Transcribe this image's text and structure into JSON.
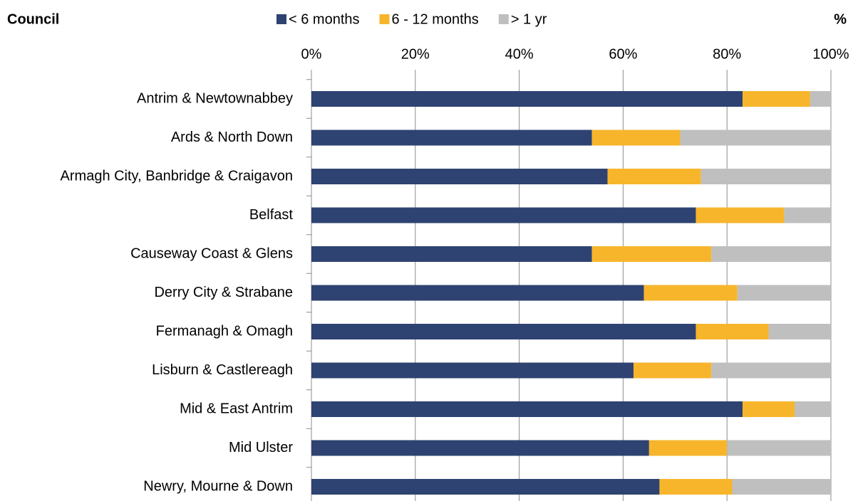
{
  "chart_data": {
    "type": "stacked_barh",
    "y_label": "Council",
    "x_label": "%",
    "categories": [
      "Antrim & Newtownabbey",
      "Ards & North Down",
      "Armagh City, Banbridge & Craigavon",
      "Belfast",
      "Causeway Coast & Glens",
      "Derry City & Strabane",
      "Fermanagh & Omagh",
      "Lisburn & Castlereagh",
      "Mid & East Antrim",
      "Mid Ulster",
      "Newry, Mourne & Down"
    ],
    "series": [
      {
        "name": "< 6 months",
        "color": "#2e4372",
        "values": [
          83,
          54,
          57,
          74,
          54,
          64,
          74,
          62,
          83,
          65,
          67
        ]
      },
      {
        "name": "6 - 12 months",
        "color": "#f7b52c",
        "values": [
          13,
          17,
          18,
          17,
          23,
          18,
          14,
          15,
          10,
          15,
          14
        ]
      },
      {
        "name": "> 1 yr",
        "color": "#bfbfbf",
        "values": [
          4,
          29,
          25,
          9,
          23,
          18,
          12,
          23,
          7,
          20,
          19
        ]
      }
    ],
    "xlim": [
      0,
      100
    ],
    "xticks": [
      {
        "value": 0,
        "label": "0%"
      },
      {
        "value": 20,
        "label": "20%"
      },
      {
        "value": 40,
        "label": "40%"
      },
      {
        "value": 60,
        "label": "60%"
      },
      {
        "value": 80,
        "label": "80%"
      },
      {
        "value": 100,
        "label": "100%"
      }
    ],
    "grid": true,
    "legend": "top"
  }
}
